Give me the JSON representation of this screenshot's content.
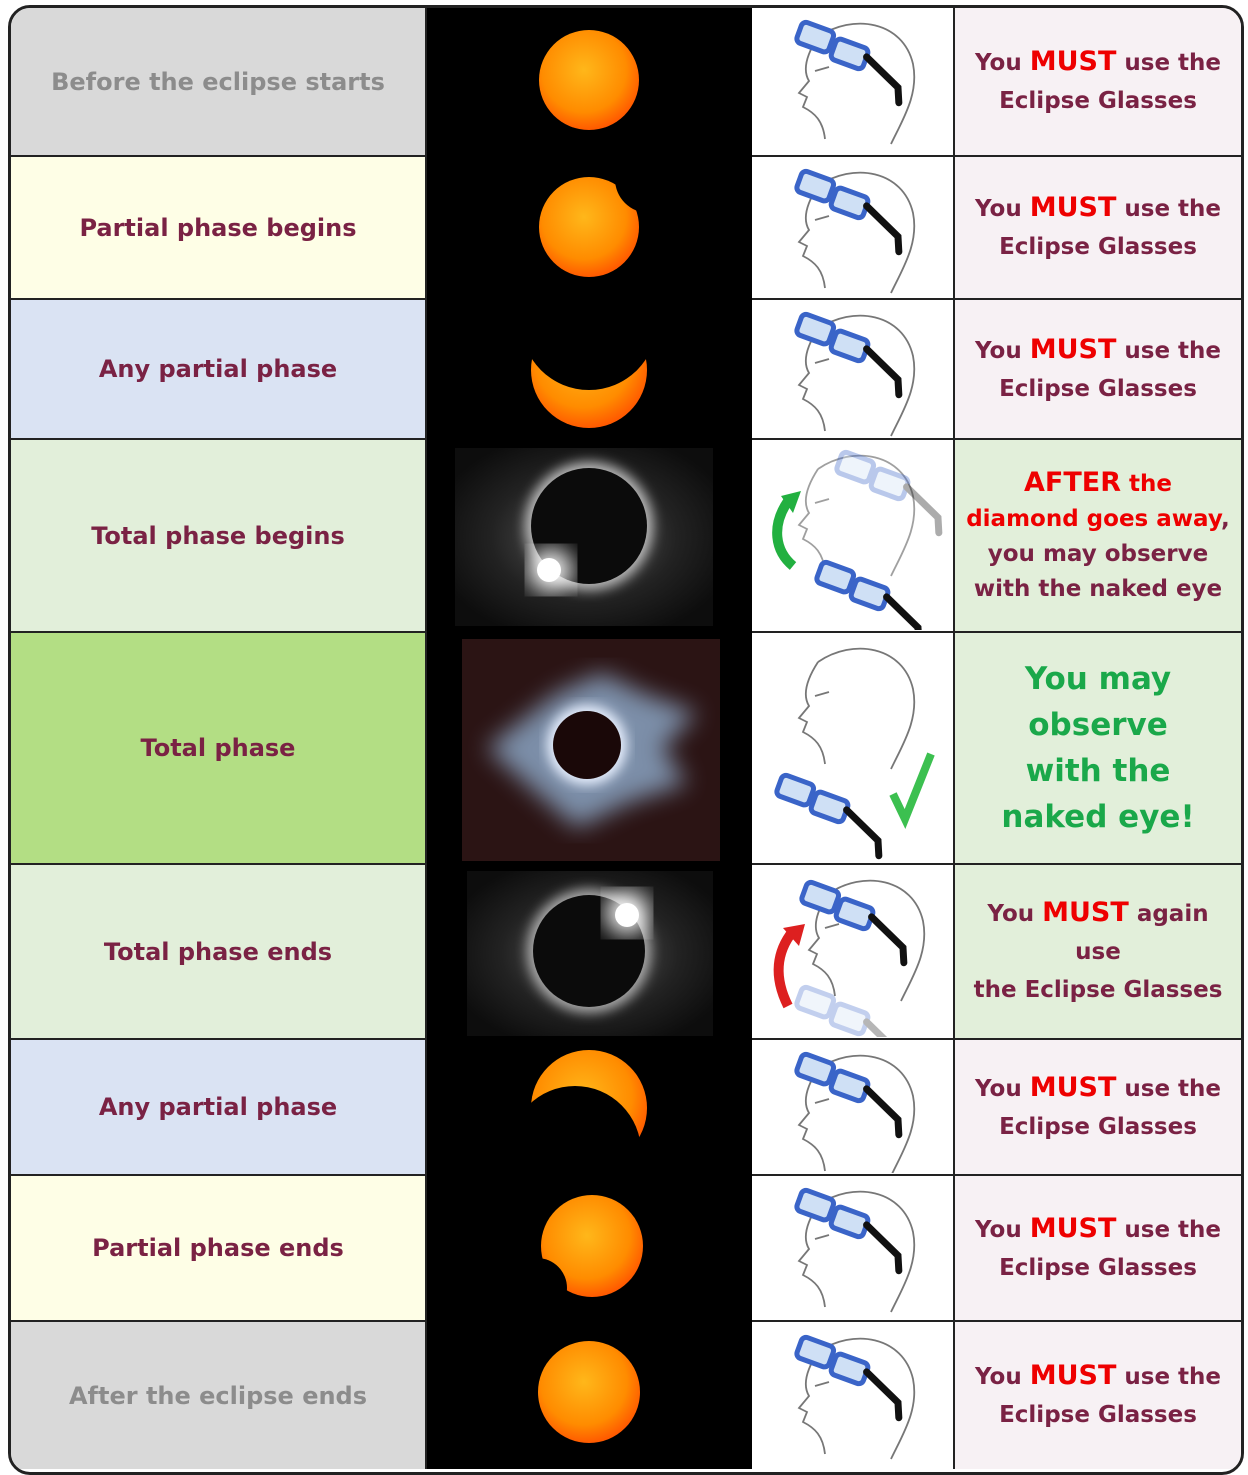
{
  "rows": [
    {
      "phase": "Before the eclipse starts",
      "instruction": [
        "You",
        "MUST",
        "use the",
        "Eclipse Glasses"
      ]
    },
    {
      "phase": "Partial phase begins",
      "instruction": [
        "You",
        "MUST",
        "use the",
        "Eclipse Glasses"
      ]
    },
    {
      "phase": "Any partial phase",
      "instruction": [
        "You",
        "MUST",
        "use the",
        "Eclipse Glasses"
      ]
    },
    {
      "phase": "Total phase begins",
      "instruction": [
        "AFTER",
        "the diamond goes away",
        ", you may observe with the naked eye"
      ]
    },
    {
      "phase": "Total phase",
      "instruction": [
        "You may observe with the naked eye!"
      ]
    },
    {
      "phase": "Total phase ends",
      "instruction": [
        "You",
        "MUST",
        "again use",
        "the Eclipse Glasses"
      ]
    },
    {
      "phase": "Any partial phase",
      "instruction": [
        "You",
        "MUST",
        "use the",
        "Eclipse Glasses"
      ]
    },
    {
      "phase": "Partial phase ends",
      "instruction": [
        "You",
        "MUST",
        "use the",
        "Eclipse Glasses"
      ]
    },
    {
      "phase": "After the eclipse ends",
      "instruction": [
        "You",
        "MUST",
        "use the",
        "Eclipse Glasses"
      ]
    }
  ]
}
